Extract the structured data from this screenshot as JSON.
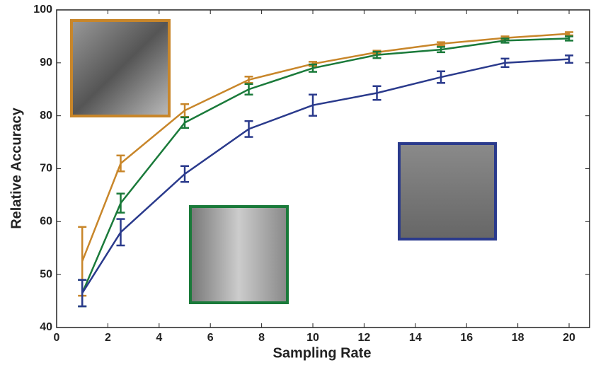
{
  "chart_data": {
    "type": "line",
    "xlabel": "Sampling Rate",
    "ylabel": "Relative Accuracy",
    "x": [
      1,
      2.5,
      5,
      7.5,
      10,
      12.5,
      15,
      17.5,
      20
    ],
    "series": [
      {
        "color": "#c8862a",
        "values": [
          52.5,
          71,
          81,
          86.8,
          89.8,
          92,
          93.6,
          94.7,
          95.5
        ],
        "errors": [
          6.5,
          1.5,
          1.2,
          0.6,
          0.4,
          0.3,
          0.3,
          0.3,
          0.3
        ]
      },
      {
        "color": "#1a7a3a",
        "values": [
          46.5,
          63.5,
          78.7,
          85,
          89,
          91.5,
          92.5,
          94.2,
          94.6
        ],
        "errors": [
          2.5,
          1.8,
          1,
          1,
          0.7,
          0.6,
          0.5,
          0.4,
          0.4
        ]
      },
      {
        "color": "#2a3a8c",
        "values": [
          46.5,
          58,
          69,
          77.5,
          82,
          84.3,
          87.3,
          90,
          90.7
        ],
        "errors": [
          2.5,
          2.5,
          1.5,
          1.5,
          2,
          1.3,
          1.1,
          0.8,
          0.7
        ]
      }
    ],
    "xlim": [
      0,
      20.8
    ],
    "xticks": [
      0,
      2,
      4,
      6,
      8,
      10,
      12,
      14,
      16,
      18,
      20
    ],
    "ylim": [
      40,
      100
    ],
    "yticks": [
      40,
      50,
      60,
      70,
      80,
      90,
      100
    ],
    "grid": false
  }
}
